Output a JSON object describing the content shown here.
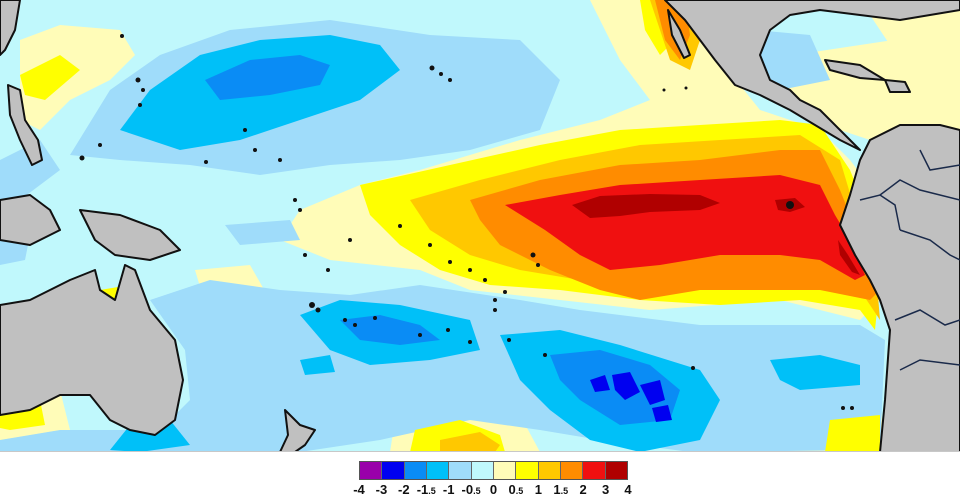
{
  "map": {
    "kind": "sea-surface-temperature-anomaly",
    "region": "Tropical Pacific Ocean",
    "land_color": "#c0c0c0",
    "coast_color": "#111111",
    "features": [
      {
        "name": "Australia",
        "type": "land"
      },
      {
        "name": "New Zealand",
        "type": "land"
      },
      {
        "name": "Mexico / Central America",
        "type": "land"
      },
      {
        "name": "South America",
        "type": "land"
      },
      {
        "name": "Maritime Continent / Philippines",
        "type": "land"
      },
      {
        "name": "Eastern equatorial warm anomaly (El Niño)",
        "type": "anomaly",
        "peak_bin": "3 to 4"
      },
      {
        "name": "North Pacific cool anomaly",
        "type": "anomaly",
        "peak_bin": "-2 to -1.5"
      },
      {
        "name": "South Pacific cool anomaly",
        "type": "anomaly",
        "peak_bin": "-3 to -2"
      }
    ]
  },
  "colorbar": {
    "bins": [
      {
        "min": -4,
        "max": -3,
        "color": "#9900aa"
      },
      {
        "min": -3,
        "max": -2,
        "color": "#0000f0"
      },
      {
        "min": -2,
        "max": -1.5,
        "color": "#0a8cf5"
      },
      {
        "min": -1.5,
        "max": -1,
        "color": "#00c0f8"
      },
      {
        "min": -1,
        "max": -0.5,
        "color": "#9fdcfa"
      },
      {
        "min": -0.5,
        "max": 0,
        "color": "#c0f8fc"
      },
      {
        "min": 0,
        "max": 0.5,
        "color": "#fffcb8"
      },
      {
        "min": 0.5,
        "max": 1,
        "color": "#ffff00"
      },
      {
        "min": 1,
        "max": 1.5,
        "color": "#ffc800"
      },
      {
        "min": 1.5,
        "max": 2,
        "color": "#ff8c00"
      },
      {
        "min": 2,
        "max": 3,
        "color": "#f01010"
      },
      {
        "min": 3,
        "max": 4,
        "color": "#b00000"
      }
    ],
    "labels": [
      {
        "text": "-4",
        "small": ""
      },
      {
        "text": "-3",
        "small": ""
      },
      {
        "text": "-2",
        "small": ""
      },
      {
        "text": "-1",
        "small": ".5"
      },
      {
        "text": "-1",
        "small": ""
      },
      {
        "text": "-0",
        "small": ".5"
      },
      {
        "text": "0",
        "small": ""
      },
      {
        "text": "0",
        "small": ".5"
      },
      {
        "text": "1",
        "small": ""
      },
      {
        "text": "1",
        "small": ".5"
      },
      {
        "text": "2",
        "small": ""
      },
      {
        "text": "3",
        "small": ""
      },
      {
        "text": "4",
        "small": ""
      }
    ]
  }
}
